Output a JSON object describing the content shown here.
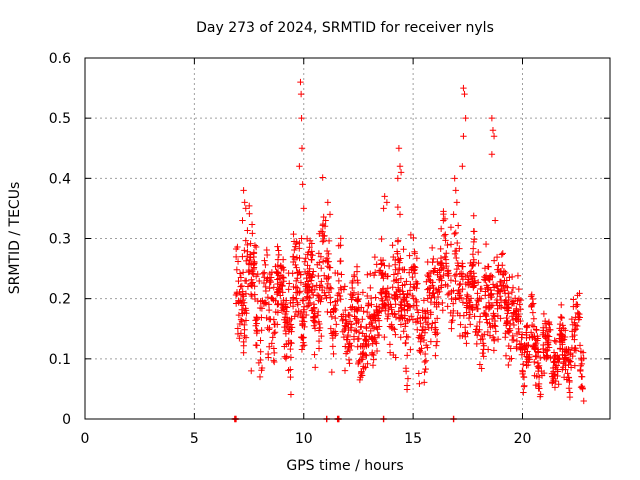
{
  "chart_data": {
    "type": "scatter",
    "title": "Day 273 of 2024, SRMTID for receiver nyls",
    "xlabel": "GPS time / hours",
    "ylabel": "SRMTID / TECUs",
    "xlim": [
      0,
      24
    ],
    "ylim": [
      0,
      0.6
    ],
    "x_ticks": [
      "0",
      "5",
      "10",
      "15",
      "20"
    ],
    "y_ticks": [
      "0",
      "0.1",
      "0.2",
      "0.3",
      "0.4",
      "0.5",
      "0.6"
    ],
    "grid": true,
    "marker": "+",
    "color": "#ff0000",
    "series": [
      {
        "name": "SRMTID",
        "profile_x": [
          6.9,
          7.2,
          7.4,
          7.7,
          8.0,
          8.3,
          8.6,
          9.0,
          9.3,
          9.6,
          9.9,
          10.2,
          10.5,
          10.8,
          11.1,
          11.4,
          11.7,
          12.0,
          12.3,
          12.6,
          12.9,
          13.2,
          13.5,
          13.8,
          14.1,
          14.4,
          14.7,
          15.0,
          15.3,
          15.6,
          15.9,
          16.2,
          16.5,
          16.8,
          17.1,
          17.4,
          17.7,
          18.0,
          18.3,
          18.6,
          18.9,
          19.2,
          19.5,
          19.8,
          20.1,
          20.4,
          20.7,
          21.0,
          21.3,
          21.6,
          21.9,
          22.2,
          22.5,
          22.8
        ],
        "profile_center": [
          0.19,
          0.2,
          0.25,
          0.22,
          0.2,
          0.19,
          0.2,
          0.19,
          0.17,
          0.19,
          0.22,
          0.21,
          0.2,
          0.26,
          0.24,
          0.19,
          0.18,
          0.18,
          0.15,
          0.16,
          0.14,
          0.17,
          0.2,
          0.19,
          0.22,
          0.2,
          0.19,
          0.21,
          0.17,
          0.15,
          0.22,
          0.24,
          0.25,
          0.23,
          0.22,
          0.21,
          0.2,
          0.21,
          0.16,
          0.19,
          0.22,
          0.2,
          0.17,
          0.14,
          0.13,
          0.12,
          0.11,
          0.11,
          0.1,
          0.1,
          0.11,
          0.12,
          0.13,
          0.12
        ],
        "profile_spread": [
          0.05,
          0.06,
          0.06,
          0.05,
          0.05,
          0.05,
          0.05,
          0.05,
          0.05,
          0.05,
          0.05,
          0.05,
          0.05,
          0.06,
          0.06,
          0.05,
          0.05,
          0.05,
          0.04,
          0.05,
          0.05,
          0.05,
          0.05,
          0.05,
          0.06,
          0.05,
          0.05,
          0.05,
          0.05,
          0.05,
          0.05,
          0.05,
          0.06,
          0.06,
          0.06,
          0.05,
          0.05,
          0.06,
          0.05,
          0.05,
          0.05,
          0.05,
          0.05,
          0.04,
          0.04,
          0.04,
          0.035,
          0.035,
          0.035,
          0.035,
          0.035,
          0.035,
          0.04,
          0.04
        ],
        "sample_count": 1700,
        "spikes": [
          {
            "x": 7.25,
            "y": 0.38
          },
          {
            "x": 7.3,
            "y": 0.36
          },
          {
            "x": 7.35,
            "y": 0.35
          },
          {
            "x": 7.2,
            "y": 0.33
          },
          {
            "x": 9.85,
            "y": 0.56
          },
          {
            "x": 9.88,
            "y": 0.54
          },
          {
            "x": 9.9,
            "y": 0.5
          },
          {
            "x": 9.92,
            "y": 0.45
          },
          {
            "x": 9.8,
            "y": 0.42
          },
          {
            "x": 9.95,
            "y": 0.39
          },
          {
            "x": 10.0,
            "y": 0.35
          },
          {
            "x": 9.9,
            "y": 0.3
          },
          {
            "x": 11.1,
            "y": 0.36
          },
          {
            "x": 11.2,
            "y": 0.34
          },
          {
            "x": 11.0,
            "y": 0.33
          },
          {
            "x": 13.7,
            "y": 0.37
          },
          {
            "x": 13.65,
            "y": 0.35
          },
          {
            "x": 13.8,
            "y": 0.36
          },
          {
            "x": 14.35,
            "y": 0.45
          },
          {
            "x": 14.4,
            "y": 0.42
          },
          {
            "x": 14.45,
            "y": 0.41
          },
          {
            "x": 14.3,
            "y": 0.4
          },
          {
            "x": 14.4,
            "y": 0.34
          },
          {
            "x": 16.9,
            "y": 0.4
          },
          {
            "x": 16.95,
            "y": 0.38
          },
          {
            "x": 17.0,
            "y": 0.36
          },
          {
            "x": 16.85,
            "y": 0.34
          },
          {
            "x": 17.3,
            "y": 0.55
          },
          {
            "x": 17.35,
            "y": 0.54
          },
          {
            "x": 17.4,
            "y": 0.5
          },
          {
            "x": 17.3,
            "y": 0.47
          },
          {
            "x": 17.25,
            "y": 0.42
          },
          {
            "x": 18.6,
            "y": 0.5
          },
          {
            "x": 18.65,
            "y": 0.48
          },
          {
            "x": 18.7,
            "y": 0.47
          },
          {
            "x": 18.6,
            "y": 0.44
          },
          {
            "x": 18.75,
            "y": 0.33
          },
          {
            "x": 22.8,
            "y": 0.03
          },
          {
            "x": 22.75,
            "y": 0.05
          },
          {
            "x": 7.6,
            "y": 0.08
          },
          {
            "x": 8.0,
            "y": 0.07
          }
        ],
        "zero_points_x": [
          6.85,
          6.9,
          11.05,
          11.55,
          11.6,
          13.65,
          16.85
        ]
      }
    ]
  }
}
